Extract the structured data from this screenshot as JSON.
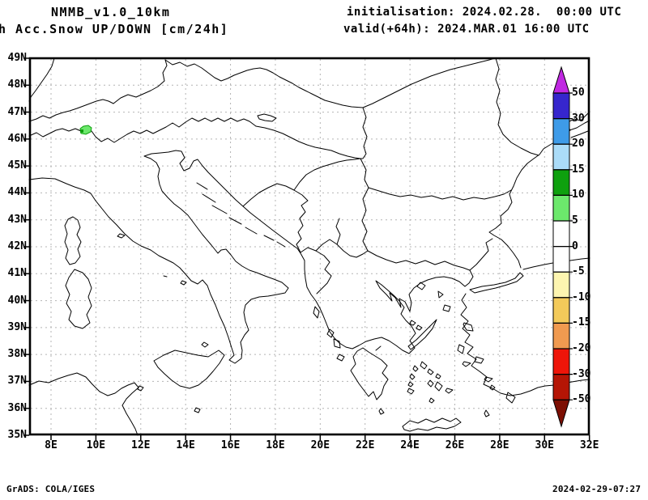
{
  "header": {
    "model": "NMMB_v1.0_10km",
    "product": "h Acc.Snow UP/DOWN [cm/24h]",
    "initialisation": "initialisation: 2024.02.28.  00:00 UTC",
    "valid": "valid(+64h): 2024.MAR.01 16:00 UTC"
  },
  "axes": {
    "lat_labels": [
      "49N",
      "48N",
      "47N",
      "46N",
      "45N",
      "44N",
      "43N",
      "42N",
      "41N",
      "40N",
      "39N",
      "38N",
      "37N",
      "36N",
      "35N"
    ],
    "lon_labels": [
      "8E",
      "10E",
      "12E",
      "14E",
      "16E",
      "18E",
      "20E",
      "22E",
      "24E",
      "26E",
      "28E",
      "30E",
      "32E"
    ]
  },
  "colorbar": {
    "boundary_labels": [
      "50",
      "30",
      "20",
      "15",
      "10",
      "5",
      "0",
      "-5",
      "-10",
      "-15",
      "-20",
      "-30",
      "-50"
    ],
    "segment_colors": [
      "#3626cd",
      "#3e9be8",
      "#abdcf8",
      "#0ea00e",
      "#6ce86c",
      "#ffffff",
      "#ffffff",
      "#fdf5b0",
      "#f3ca5a",
      "#f09a50",
      "#ee1509",
      "#b51505"
    ],
    "above_max_color": "#c028e2",
    "below_min_color": "#7d0f03"
  },
  "map_overlays": {
    "snow_patch_colors": [
      "#6ce86c",
      "#0ea00e"
    ]
  },
  "footer": {
    "credit": "GrADS: COLA/IGES",
    "timestamp": "2024-02-29-07:27"
  }
}
